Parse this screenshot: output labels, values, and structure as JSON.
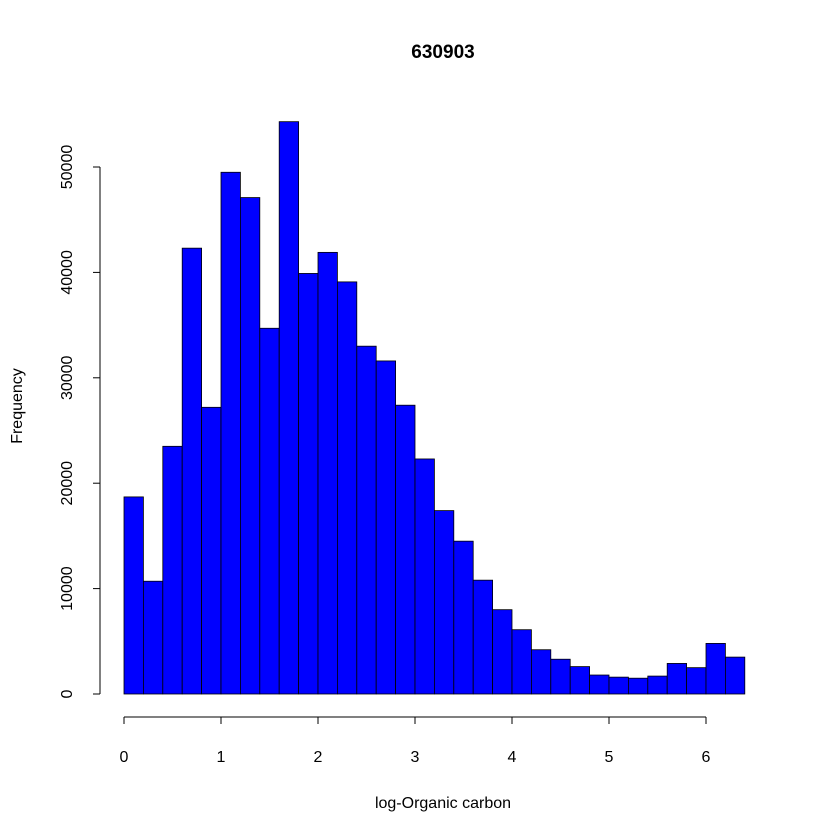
{
  "chart_data": {
    "type": "bar",
    "title": "630903",
    "xlabel": "log-Organic carbon",
    "ylabel": "Frequency",
    "bar_color": "#0000ff",
    "bin_width": 0.2,
    "bin_start": 0,
    "values": [
      18700,
      10700,
      23500,
      42300,
      27200,
      49500,
      47100,
      34700,
      54300,
      39900,
      41900,
      39100,
      33000,
      31600,
      27400,
      22300,
      17400,
      14500,
      10800,
      8000,
      6100,
      4200,
      3300,
      2600,
      1800,
      1600,
      1500,
      1700,
      2900,
      2500,
      4800,
      3500
    ],
    "xlim": [
      0,
      6.4
    ],
    "ylim": [
      0,
      54300
    ],
    "x_ticks": [
      "0",
      "1",
      "2",
      "3",
      "4",
      "5",
      "6"
    ],
    "y_ticks": [
      "0",
      "10000",
      "20000",
      "30000",
      "40000",
      "50000"
    ],
    "grid": false,
    "legend": "none"
  }
}
